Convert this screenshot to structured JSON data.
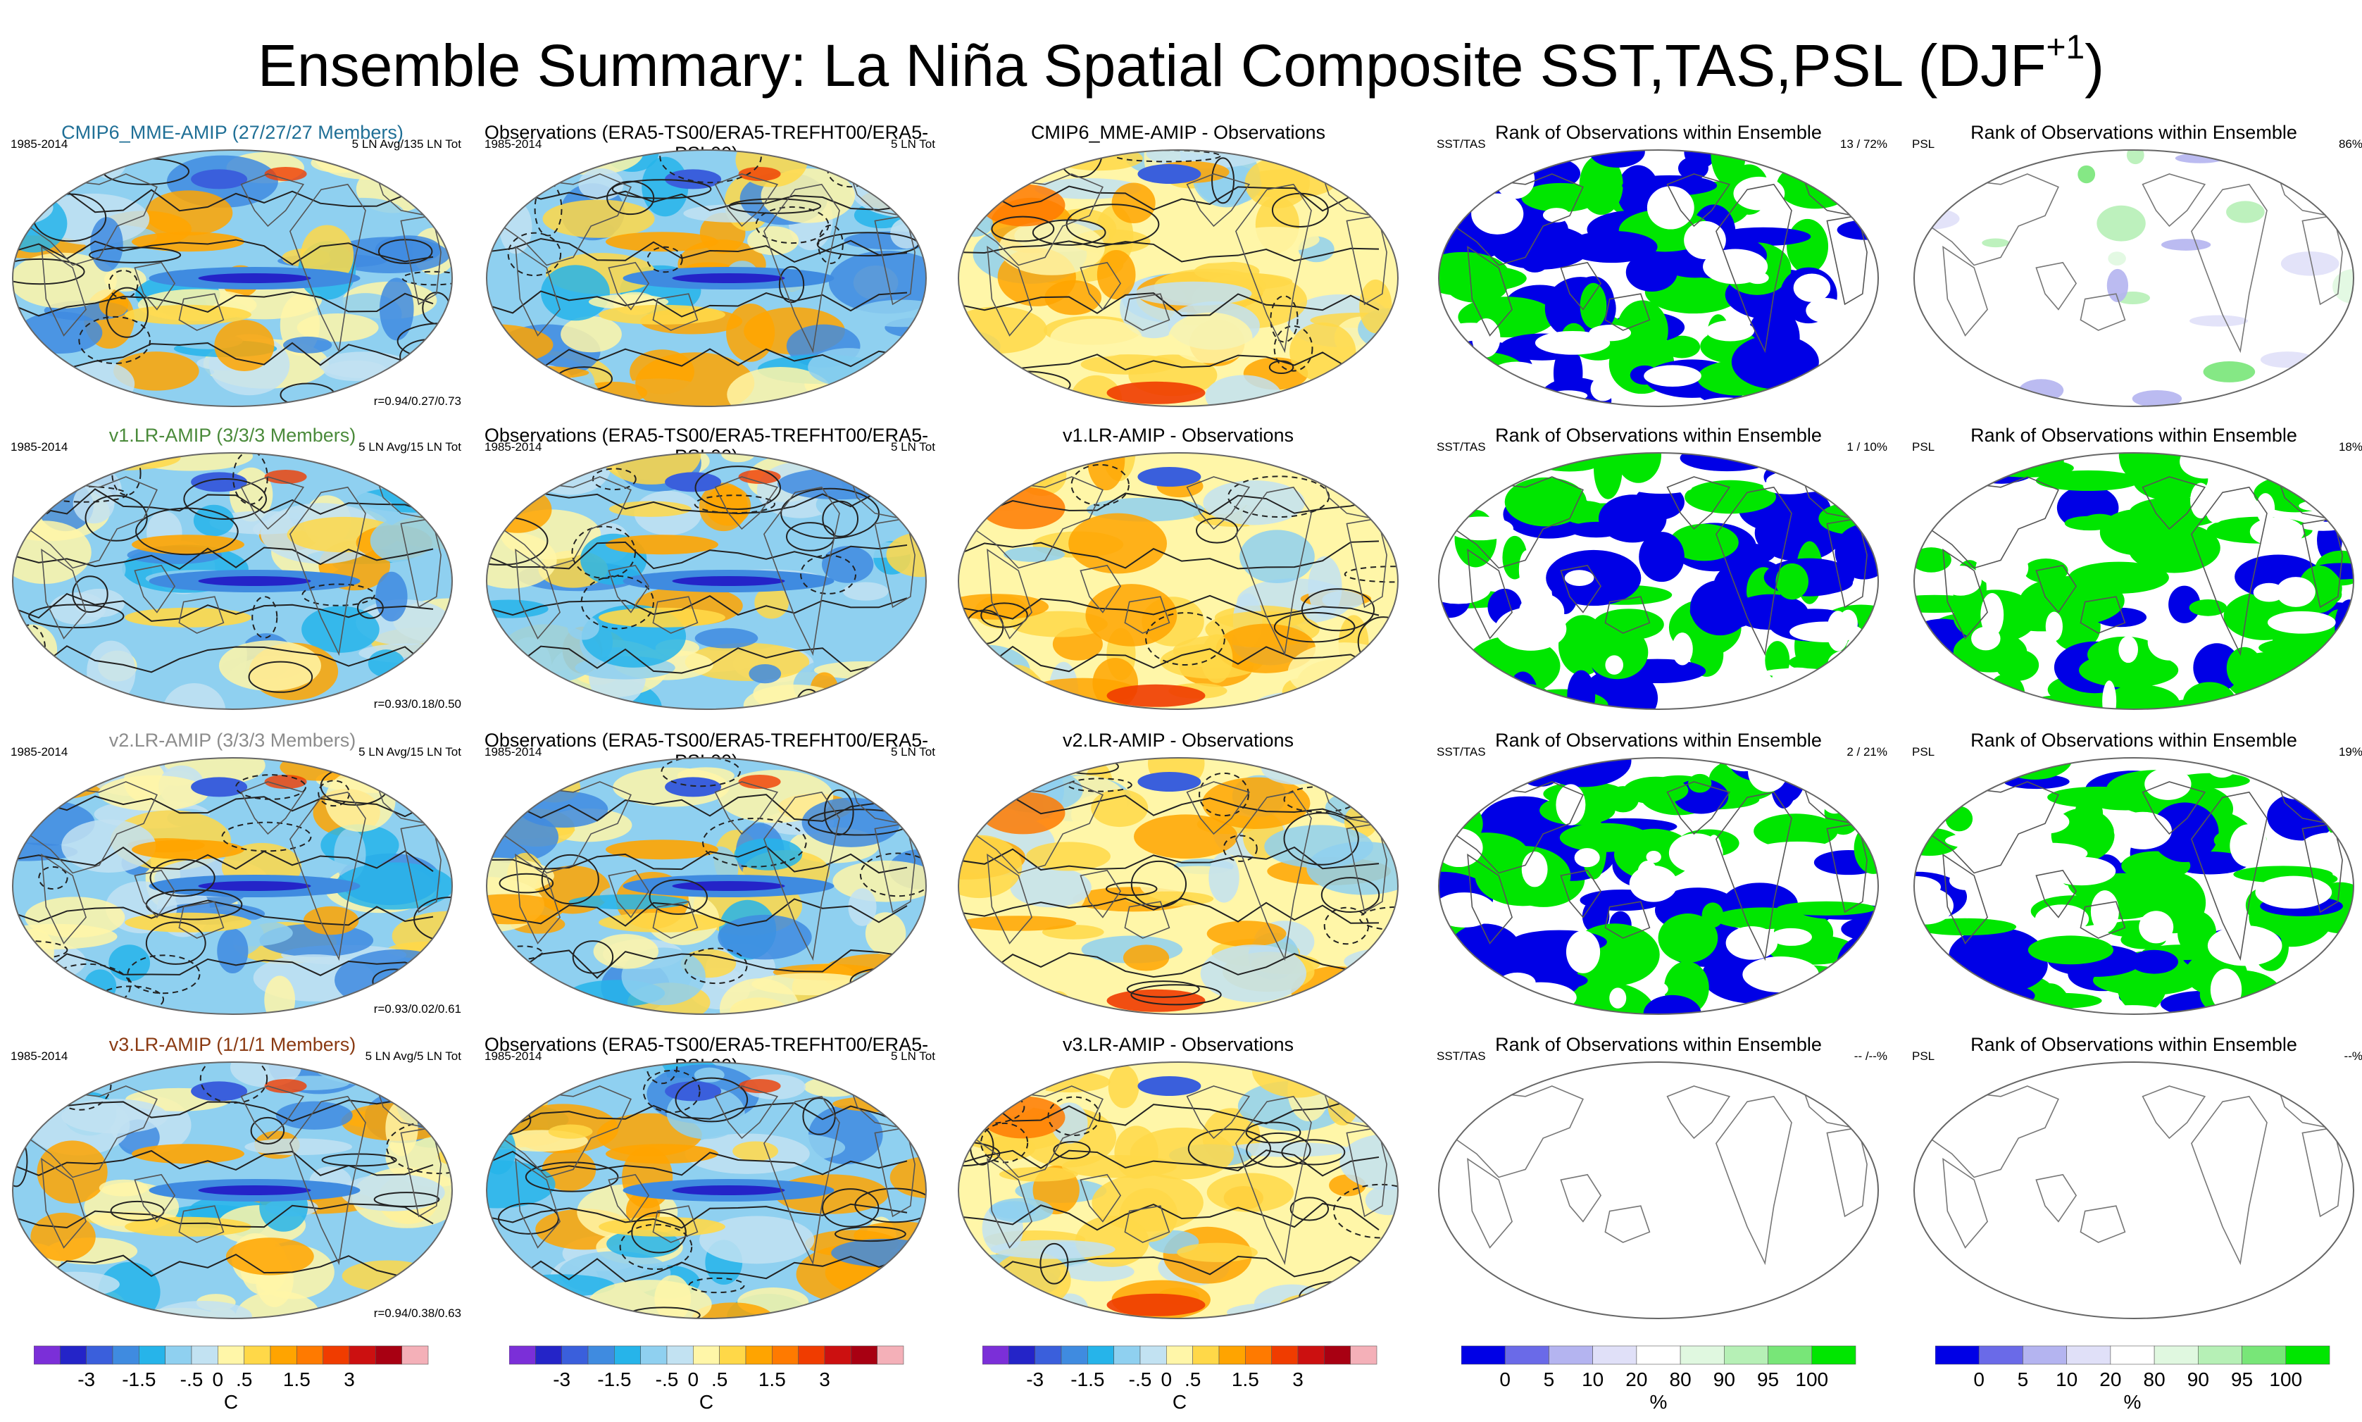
{
  "title": "Ensemble Summary: La Niña Spatial Composite SST,TAS,PSL (DJF",
  "title_sup": "+1",
  "colors": {
    "cmip6": "#1f6f96",
    "v1": "#4a8a3a",
    "v2": "#8c8c8c",
    "v3": "#8a3a12"
  },
  "panels": {
    "rank_title": "Rank of Observations within Ensemble",
    "sst_tas_label": "SST/TAS",
    "psl_label": "PSL",
    "obs_title": "Observations (ERA5-TS00/ERA5-TREFHT00/ERA5-PSL00)",
    "period": "1985-2014",
    "obs_ln": "5 LN Tot"
  },
  "rows": [
    {
      "model_title": "CMIP6_MME-AMIP (27/27/27 Members)",
      "ln": "5 LN Avg/135 LN Tot",
      "r": "r=0.94/0.27/0.73",
      "diff_title": "CMIP6_MME-AMIP - Observations",
      "rank_sst": "13 /  72%",
      "rank_psl": "86%",
      "color_key": "cmip6"
    },
    {
      "model_title": "v1.LR-AMIP (3/3/3 Members)",
      "ln": "5 LN Avg/15 LN Tot",
      "r": "r=0.93/0.18/0.50",
      "diff_title": "v1.LR-AMIP - Observations",
      "rank_sst": "1 /  10%",
      "rank_psl": "18%",
      "color_key": "v1"
    },
    {
      "model_title": "v2.LR-AMIP (3/3/3 Members)",
      "ln": "5 LN Avg/15 LN Tot",
      "r": "r=0.93/0.02/0.61",
      "diff_title": "v2.LR-AMIP - Observations",
      "rank_sst": "2 /  21%",
      "rank_psl": "19%",
      "color_key": "v2"
    },
    {
      "model_title": "v3.LR-AMIP (1/1/1 Members)",
      "ln": "5 LN Avg/5 LN Tot",
      "r": "r=0.94/0.38/0.63",
      "diff_title": "v3.LR-AMIP - Observations",
      "rank_sst": "-- /--%",
      "rank_psl": "--%",
      "color_key": "v3"
    }
  ],
  "chart_data": {
    "type": "heatmap",
    "projection": "Robinson-like global maps, 4 rows x 5 columns",
    "temperature_colorbar": {
      "unit": "C",
      "tick_labels": [
        "-3",
        "-1.5",
        "-.5",
        "0",
        ".5",
        "1.5",
        "3"
      ],
      "colors": [
        "#7b2fd8",
        "#2424c8",
        "#3a5fdc",
        "#3f8be0",
        "#26b4ea",
        "#8fd0f0",
        "#c2e2f2",
        "#fff6a8",
        "#ffd848",
        "#ffa400",
        "#ff7a00",
        "#f03c00",
        "#cc1010",
        "#a80012",
        "#f4b0b8"
      ]
    },
    "rank_colorbar": {
      "unit": "%",
      "tick_labels": [
        "0",
        "5",
        "10",
        "20",
        "80",
        "90",
        "95",
        "100"
      ],
      "colors": [
        "#0000e6",
        "#6a6ae8",
        "#b4b4f0",
        "#e0e0f8",
        "#ffffff",
        "#e0f8e0",
        "#b6f0b6",
        "#78e678",
        "#00e600"
      ]
    }
  }
}
